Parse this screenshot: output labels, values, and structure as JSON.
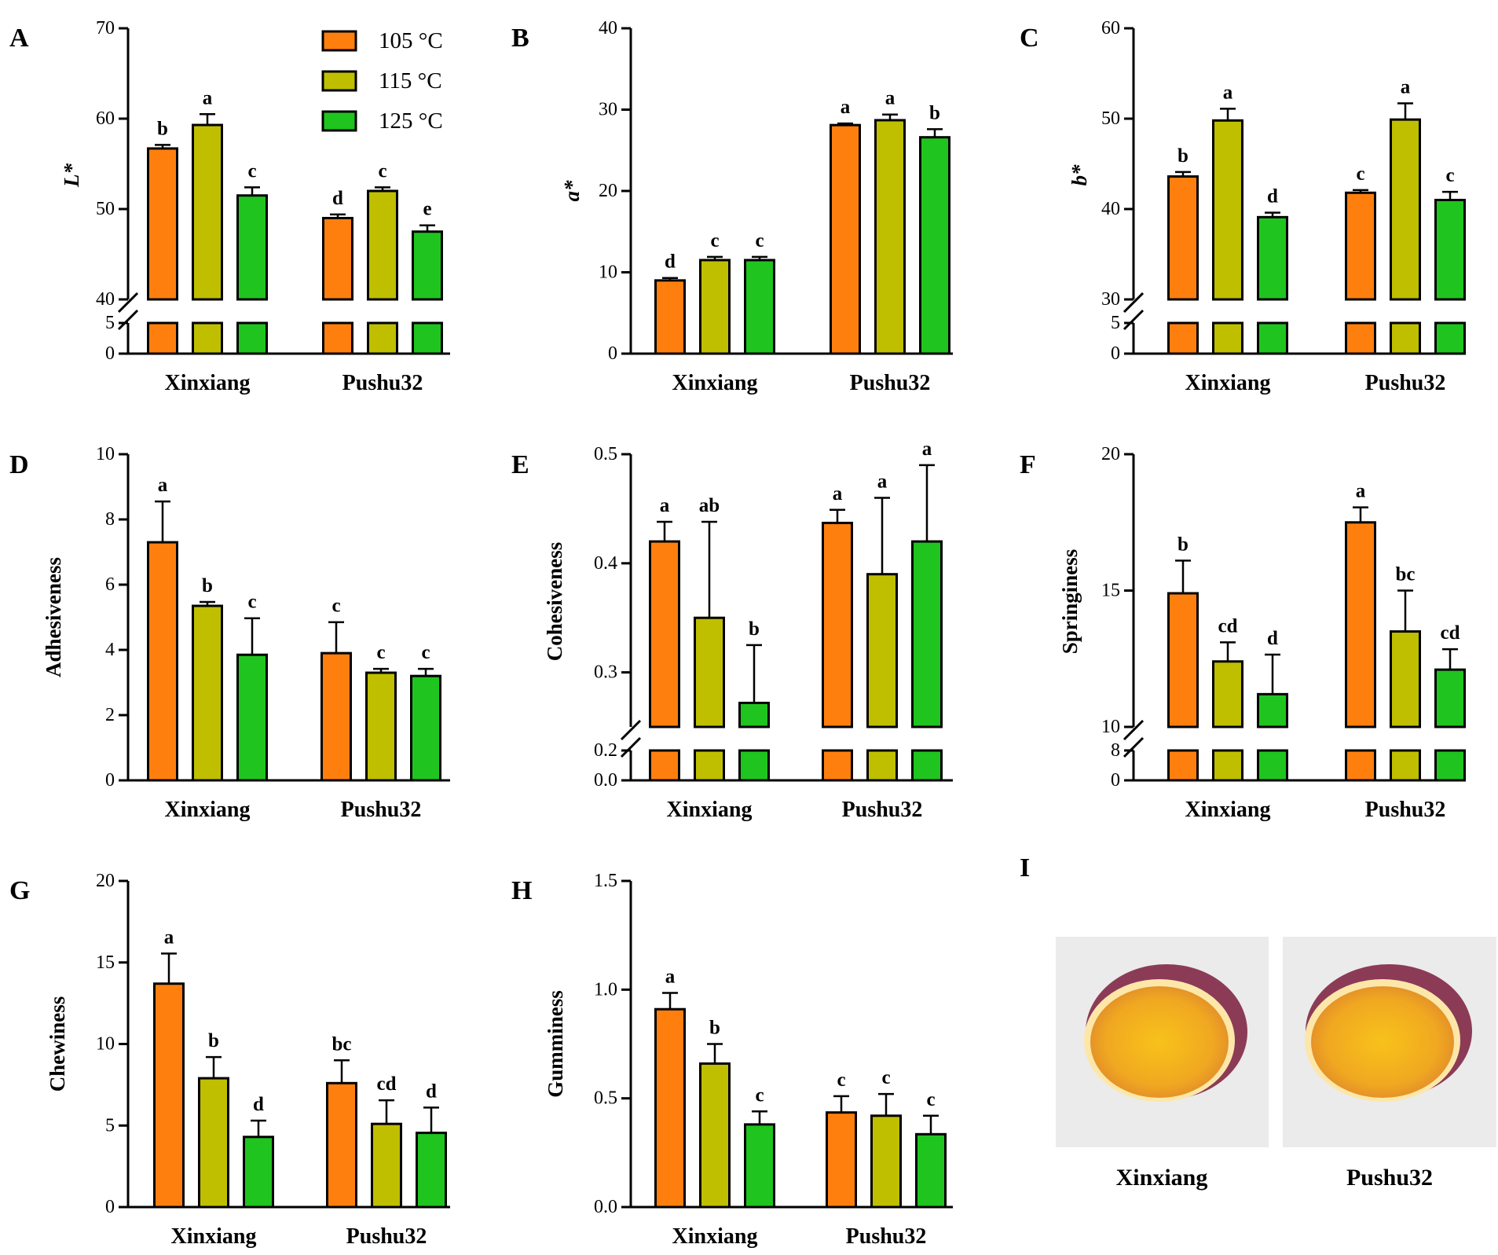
{
  "figure": {
    "legend": [
      {
        "label": "105 °C",
        "color": "#ff7f0e"
      },
      {
        "label": "115 °C",
        "color": "#bfbf00"
      },
      {
        "label": "125 °C",
        "color": "#1fc41f"
      }
    ],
    "groups": [
      "Xinxiang",
      "Pushu32"
    ]
  },
  "chart_data": [
    {
      "panel": "A",
      "type": "bar",
      "ylabel": "L*",
      "ylabel_italic": true,
      "categories": [
        "Xinxiang",
        "Pushu32"
      ],
      "ylim": [
        0,
        70
      ],
      "axis_break": {
        "lower": [
          0,
          5
        ],
        "upper": [
          40,
          70
        ],
        "lower_ticks": [
          0,
          5
        ],
        "upper_ticks": [
          40,
          50,
          60,
          70
        ]
      },
      "series": [
        {
          "name": "105 °C",
          "values": [
            56.7,
            49.0
          ],
          "errors": [
            0.4,
            0.4
          ],
          "letters": [
            "b",
            "d"
          ]
        },
        {
          "name": "115 °C",
          "values": [
            59.3,
            52.0
          ],
          "errors": [
            1.2,
            0.4
          ],
          "letters": [
            "a",
            "c"
          ]
        },
        {
          "name": "125 °C",
          "values": [
            51.5,
            47.5
          ],
          "errors": [
            0.9,
            0.7
          ],
          "letters": [
            "c",
            "e"
          ]
        }
      ]
    },
    {
      "panel": "B",
      "type": "bar",
      "ylabel": "a*",
      "ylabel_italic": true,
      "categories": [
        "Xinxiang",
        "Pushu32"
      ],
      "ylim": [
        0,
        40
      ],
      "ticks": [
        0,
        10,
        20,
        30,
        40
      ],
      "series": [
        {
          "name": "105 °C",
          "values": [
            9.0,
            28.1
          ],
          "errors": [
            0.3,
            0.2
          ],
          "letters": [
            "d",
            "a"
          ]
        },
        {
          "name": "115 °C",
          "values": [
            11.5,
            28.7
          ],
          "errors": [
            0.4,
            0.7
          ],
          "letters": [
            "c",
            "a"
          ]
        },
        {
          "name": "125 °C",
          "values": [
            11.5,
            26.6
          ],
          "errors": [
            0.4,
            1.0
          ],
          "letters": [
            "c",
            "b"
          ]
        }
      ]
    },
    {
      "panel": "C",
      "type": "bar",
      "ylabel": "b*",
      "ylabel_italic": true,
      "categories": [
        "Xinxiang",
        "Pushu32"
      ],
      "ylim": [
        0,
        60
      ],
      "axis_break": {
        "lower": [
          0,
          5
        ],
        "upper": [
          30,
          60
        ],
        "lower_ticks": [
          0,
          5
        ],
        "upper_ticks": [
          30,
          40,
          50,
          60
        ]
      },
      "series": [
        {
          "name": "105 °C",
          "values": [
            43.6,
            41.8
          ],
          "errors": [
            0.5,
            0.3
          ],
          "letters": [
            "b",
            "c"
          ]
        },
        {
          "name": "115 °C",
          "values": [
            49.8,
            49.9
          ],
          "errors": [
            1.3,
            1.8
          ],
          "letters": [
            "a",
            "a"
          ]
        },
        {
          "name": "125 °C",
          "values": [
            39.1,
            41.0
          ],
          "errors": [
            0.5,
            0.9
          ],
          "letters": [
            "d",
            "c"
          ]
        }
      ]
    },
    {
      "panel": "D",
      "type": "bar",
      "ylabel": "Adhesiveness",
      "ylabel_italic": false,
      "categories": [
        "Xinxiang",
        "Pushu32"
      ],
      "ylim": [
        0,
        10
      ],
      "ticks": [
        0,
        2,
        4,
        6,
        8,
        10
      ],
      "series": [
        {
          "name": "105 °C",
          "values": [
            7.3,
            3.9
          ],
          "errors": [
            1.25,
            0.95
          ],
          "letters": [
            "a",
            "c"
          ]
        },
        {
          "name": "115 °C",
          "values": [
            5.35,
            3.3
          ],
          "errors": [
            0.12,
            0.12
          ],
          "letters": [
            "b",
            "c"
          ]
        },
        {
          "name": "125 °C",
          "values": [
            3.85,
            3.2
          ],
          "errors": [
            1.12,
            0.22
          ],
          "letters": [
            "c",
            "c"
          ]
        }
      ]
    },
    {
      "panel": "E",
      "type": "bar",
      "ylabel": "Cohesiveness",
      "ylabel_italic": false,
      "categories": [
        "Xinxiang",
        "Pushu32"
      ],
      "ylim": [
        0,
        0.5
      ],
      "axis_break": {
        "lower": [
          0,
          0.2
        ],
        "upper": [
          0.25,
          0.5
        ],
        "lower_ticks": [
          0.0,
          0.2
        ],
        "upper_ticks": [
          0.3,
          0.4,
          0.5
        ],
        "lower_tick_labels": [
          "0.0",
          "0.2"
        ],
        "upper_tick_labels": [
          "0.3",
          "0.4",
          "0.5"
        ]
      },
      "series": [
        {
          "name": "105 °C",
          "values": [
            0.42,
            0.437
          ],
          "errors": [
            0.018,
            0.012
          ],
          "letters": [
            "a",
            "a"
          ]
        },
        {
          "name": "115 °C",
          "values": [
            0.35,
            0.39
          ],
          "errors": [
            0.088,
            0.07
          ],
          "letters": [
            "ab",
            "a"
          ]
        },
        {
          "name": "125 °C",
          "values": [
            0.272,
            0.42
          ],
          "errors": [
            0.053,
            0.07
          ],
          "letters": [
            "b",
            "a"
          ]
        }
      ]
    },
    {
      "panel": "F",
      "type": "bar",
      "ylabel": "Springiness",
      "ylabel_italic": false,
      "categories": [
        "Xinxiang",
        "Pushu32"
      ],
      "ylim": [
        0,
        20
      ],
      "axis_break": {
        "lower": [
          0,
          8
        ],
        "upper": [
          10,
          20
        ],
        "lower_ticks": [
          0,
          8
        ],
        "upper_ticks": [
          10,
          15,
          20
        ]
      },
      "series": [
        {
          "name": "105 °C",
          "values": [
            14.9,
            17.5
          ],
          "errors": [
            1.2,
            0.55
          ],
          "letters": [
            "b",
            "a"
          ]
        },
        {
          "name": "115 °C",
          "values": [
            12.4,
            13.5
          ],
          "errors": [
            0.7,
            1.5
          ],
          "letters": [
            "cd",
            "bc"
          ]
        },
        {
          "name": "125 °C",
          "values": [
            11.2,
            12.1
          ],
          "errors": [
            1.45,
            0.75
          ],
          "letters": [
            "d",
            "cd"
          ]
        }
      ]
    },
    {
      "panel": "G",
      "type": "bar",
      "ylabel": "Chewiness",
      "ylabel_italic": false,
      "categories": [
        "Xinxiang",
        "Pushu32"
      ],
      "ylim": [
        0,
        20
      ],
      "ticks": [
        0,
        5,
        10,
        15,
        20
      ],
      "series": [
        {
          "name": "105 °C",
          "values": [
            13.7,
            7.6
          ],
          "errors": [
            1.85,
            1.4
          ],
          "letters": [
            "a",
            "bc"
          ]
        },
        {
          "name": "115 °C",
          "values": [
            7.9,
            5.1
          ],
          "errors": [
            1.3,
            1.45
          ],
          "letters": [
            "b",
            "cd"
          ]
        },
        {
          "name": "125 °C",
          "values": [
            4.3,
            4.55
          ],
          "errors": [
            1.0,
            1.55
          ],
          "letters": [
            "d",
            "d"
          ]
        }
      ]
    },
    {
      "panel": "H",
      "type": "bar",
      "ylabel": "Gumminess",
      "ylabel_italic": false,
      "categories": [
        "Xinxiang",
        "Pushu32"
      ],
      "ylim": [
        0,
        1.5
      ],
      "ticks": [
        0,
        0.5,
        1.0,
        1.5
      ],
      "tick_labels": [
        "0.0",
        "0.5",
        "1.0",
        "1.5"
      ],
      "series": [
        {
          "name": "105 °C",
          "values": [
            0.91,
            0.435
          ],
          "errors": [
            0.075,
            0.075
          ],
          "letters": [
            "a",
            "c"
          ]
        },
        {
          "name": "115 °C",
          "values": [
            0.66,
            0.42
          ],
          "errors": [
            0.09,
            0.1
          ],
          "letters": [
            "b",
            "c"
          ]
        },
        {
          "name": "125 °C",
          "values": [
            0.38,
            0.335
          ],
          "errors": [
            0.06,
            0.085
          ],
          "letters": [
            "c",
            "c"
          ]
        }
      ]
    }
  ],
  "photos": {
    "panel": "I",
    "items": [
      {
        "caption": "Xinxiang",
        "subject": "sweet-potato-slice"
      },
      {
        "caption": "Pushu32",
        "subject": "sweet-potato-slice"
      }
    ]
  }
}
